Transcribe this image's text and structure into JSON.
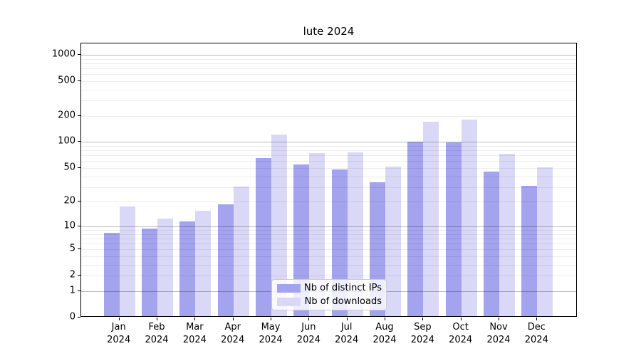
{
  "title": "lute 2024",
  "chart_data": {
    "type": "bar",
    "title": "lute 2024",
    "categories": [
      "Jan 2024",
      "Feb 2024",
      "Mar 2024",
      "Apr 2024",
      "May 2024",
      "Jun 2024",
      "Jul 2024",
      "Aug 2024",
      "Sep 2024",
      "Oct 2024",
      "Nov 2024",
      "Dec 2024"
    ],
    "series": [
      {
        "name": "Nb of distinct IPs",
        "color": "#a3a3ee",
        "values": [
          8,
          9,
          11,
          18,
          63,
          53,
          46,
          33,
          97,
          95,
          44,
          30
        ]
      },
      {
        "name": "Nb of downloads",
        "color": "#d9d9f7",
        "values": [
          17,
          12,
          15,
          29,
          117,
          72,
          73,
          50,
          165,
          175,
          71,
          49
        ]
      }
    ],
    "xlabel": "",
    "ylabel": "",
    "y_ticks": [
      0,
      1,
      2,
      5,
      10,
      20,
      50,
      100,
      200,
      500,
      1000
    ],
    "y_scale": "log10(1+v)",
    "ylim": [
      0,
      1350
    ],
    "grid": true,
    "legend_position": "lower center"
  }
}
